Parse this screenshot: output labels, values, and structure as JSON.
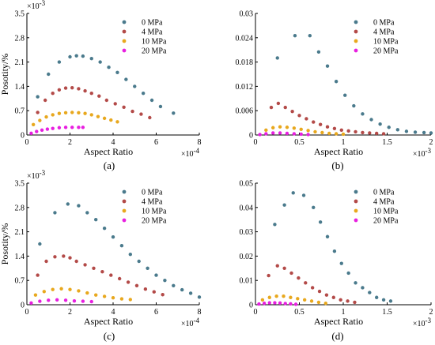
{
  "colors": {
    "0 MPa": "#4a7a8c",
    "4 MPa": "#b34a48",
    "10 MPa": "#e8a81e",
    "20 MPa": "#e81fe0"
  },
  "chart_data": [
    {
      "type": "scatter",
      "panel_label": "(a)",
      "xlabel": "Aspect Ratio",
      "ylabel": "Posotity/%",
      "x_multiplier": "×10",
      "x_exponent": "-4",
      "y_multiplier": "×10",
      "y_exponent": "-3",
      "xlim": [
        0,
        8
      ],
      "ylim": [
        0,
        3.5
      ],
      "xticks": [
        "0",
        "2",
        "4",
        "6",
        "8"
      ],
      "yticks": [
        "0",
        "0.7",
        "1.4",
        "2.1",
        "2.8",
        "3.5"
      ],
      "legend_position": "top-right",
      "series": [
        {
          "name": "0 MPa",
          "x": [
            0.5,
            1.0,
            1.5,
            2.0,
            2.3,
            2.6,
            3.0,
            3.4,
            3.8,
            4.2,
            4.6,
            5.0,
            5.4,
            5.8,
            6.2,
            6.8
          ],
          "y": [
            1.1,
            1.75,
            2.1,
            2.25,
            2.28,
            2.27,
            2.2,
            2.1,
            1.95,
            1.8,
            1.6,
            1.4,
            1.2,
            1.0,
            0.82,
            0.63
          ]
        },
        {
          "name": "4 MPa",
          "x": [
            0.5,
            0.85,
            1.2,
            1.5,
            1.8,
            2.1,
            2.4,
            2.7,
            3.0,
            3.35,
            3.7,
            4.1,
            4.5,
            4.9,
            5.3,
            5.7
          ],
          "y": [
            0.65,
            1.0,
            1.2,
            1.3,
            1.35,
            1.36,
            1.33,
            1.27,
            1.2,
            1.12,
            1.0,
            0.9,
            0.8,
            0.68,
            0.6,
            0.5
          ]
        },
        {
          "name": "10 MPa",
          "x": [
            0.3,
            0.6,
            0.9,
            1.2,
            1.5,
            1.8,
            2.1,
            2.4,
            2.7,
            3.0,
            3.3,
            3.6,
            3.9,
            4.2
          ],
          "y": [
            0.3,
            0.42,
            0.52,
            0.58,
            0.62,
            0.64,
            0.65,
            0.64,
            0.62,
            0.58,
            0.53,
            0.48,
            0.43,
            0.38
          ]
        },
        {
          "name": "20 MPa",
          "x": [
            0.2,
            0.45,
            0.7,
            0.95,
            1.2,
            1.5,
            1.8,
            2.1,
            2.4,
            2.6
          ],
          "y": [
            0.05,
            0.1,
            0.14,
            0.17,
            0.19,
            0.21,
            0.22,
            0.22,
            0.22,
            0.22
          ]
        }
      ]
    },
    {
      "type": "scatter",
      "panel_label": "(b)",
      "xlabel": "Aspect Ratio",
      "ylabel": "",
      "x_multiplier": "×10",
      "x_exponent": "-3",
      "y_multiplier": "",
      "y_exponent": "",
      "xlim": [
        0,
        2
      ],
      "ylim": [
        0,
        0.03
      ],
      "xticks": [
        "0",
        "0.5",
        "1",
        "1.5",
        "2"
      ],
      "yticks": [
        "0",
        "0.006",
        "0.012",
        "0.018",
        "0.024",
        "0.03"
      ],
      "legend_position": "top-right",
      "series": [
        {
          "name": "0 MPa",
          "x": [
            0.25,
            0.45,
            0.62,
            0.72,
            0.82,
            0.92,
            1.02,
            1.12,
            1.22,
            1.32,
            1.42,
            1.52,
            1.62,
            1.72,
            1.82,
            1.92,
            2.0
          ],
          "y": [
            0.019,
            0.0245,
            0.0245,
            0.0205,
            0.017,
            0.0132,
            0.0098,
            0.0072,
            0.0052,
            0.0038,
            0.0027,
            0.0019,
            0.0013,
            0.0009,
            0.0007,
            0.0006,
            0.0005
          ]
        },
        {
          "name": "4 MPa",
          "x": [
            0.18,
            0.26,
            0.34,
            0.42,
            0.5,
            0.58,
            0.66,
            0.74,
            0.82,
            0.9,
            0.98,
            1.06,
            1.14,
            1.22,
            1.3,
            1.38,
            1.46
          ],
          "y": [
            0.0068,
            0.0078,
            0.0068,
            0.0058,
            0.0048,
            0.004,
            0.0032,
            0.0026,
            0.002,
            0.0016,
            0.0012,
            0.001,
            0.0008,
            0.0006,
            0.0005,
            0.0004,
            0.0003
          ]
        },
        {
          "name": "10 MPa",
          "x": [
            0.12,
            0.2,
            0.28,
            0.36,
            0.44,
            0.52,
            0.6,
            0.68,
            0.76,
            0.84,
            0.92,
            1.0
          ],
          "y": [
            0.0012,
            0.0018,
            0.002,
            0.0019,
            0.0017,
            0.0014,
            0.0011,
            0.0008,
            0.0006,
            0.0004,
            0.0003,
            0.0002
          ]
        },
        {
          "name": "20 MPa",
          "x": [
            0.05,
            0.12,
            0.2,
            0.28,
            0.36,
            0.44,
            0.52,
            0.6
          ],
          "y": [
            0.0001,
            0.0003,
            0.0005,
            0.0005,
            0.0004,
            0.0003,
            0.0002,
            0.0001
          ]
        }
      ]
    },
    {
      "type": "scatter",
      "panel_label": "(c)",
      "xlabel": "Aspect Ratio",
      "ylabel": "Posotity/%",
      "x_multiplier": "×10",
      "x_exponent": "-4",
      "y_multiplier": "×10",
      "y_exponent": "-3",
      "xlim": [
        0,
        8
      ],
      "ylim": [
        0,
        3.5
      ],
      "xticks": [
        "0",
        "2",
        "4",
        "6",
        "8"
      ],
      "yticks": [
        "0",
        "0.7",
        "1.4",
        "2.1",
        "2.8",
        "3.5"
      ],
      "legend_position": "top-right",
      "series": [
        {
          "name": "0 MPa",
          "x": [
            0.6,
            1.3,
            1.9,
            2.4,
            2.8,
            3.2,
            3.6,
            4.0,
            4.4,
            4.8,
            5.2,
            5.6,
            6.0,
            6.4,
            6.8,
            7.2,
            7.6,
            8.0
          ],
          "y": [
            1.75,
            2.65,
            2.9,
            2.85,
            2.65,
            2.45,
            2.2,
            1.95,
            1.7,
            1.45,
            1.25,
            1.05,
            0.85,
            0.7,
            0.55,
            0.43,
            0.33,
            0.22
          ]
        },
        {
          "name": "4 MPa",
          "x": [
            0.5,
            0.9,
            1.3,
            1.7,
            2.0,
            2.3,
            2.7,
            3.1,
            3.5,
            3.9,
            4.3,
            4.7,
            5.1,
            5.5,
            5.9,
            6.3
          ],
          "y": [
            0.85,
            1.25,
            1.38,
            1.4,
            1.35,
            1.25,
            1.15,
            1.05,
            0.95,
            0.85,
            0.75,
            0.65,
            0.55,
            0.45,
            0.37,
            0.29
          ]
        },
        {
          "name": "10 MPa",
          "x": [
            0.4,
            0.8,
            1.2,
            1.6,
            2.0,
            2.4,
            2.8,
            3.2,
            3.6,
            4.0,
            4.4,
            4.8
          ],
          "y": [
            0.28,
            0.38,
            0.44,
            0.46,
            0.44,
            0.4,
            0.34,
            0.28,
            0.24,
            0.2,
            0.17,
            0.15
          ]
        },
        {
          "name": "20 MPa",
          "x": [
            0.2,
            0.6,
            1.0,
            1.4,
            1.8,
            2.2,
            2.6,
            3.0
          ],
          "y": [
            0.05,
            0.1,
            0.13,
            0.14,
            0.13,
            0.11,
            0.1,
            0.09
          ]
        }
      ]
    },
    {
      "type": "scatter",
      "panel_label": "(d)",
      "xlabel": "Aspect Ratio",
      "ylabel": "",
      "x_multiplier": "×10",
      "x_exponent": "-3",
      "y_multiplier": "",
      "y_exponent": "",
      "xlim": [
        0,
        2
      ],
      "ylim": [
        0,
        0.05
      ],
      "xticks": [
        "0",
        "0.5",
        "1",
        "1.5",
        "2"
      ],
      "yticks": [
        "0",
        "0.01",
        "0.02",
        "0.03",
        "0.04",
        "0.05"
      ],
      "legend_position": "top-right",
      "series": [
        {
          "name": "0 MPa",
          "x": [
            0.22,
            0.33,
            0.43,
            0.55,
            0.66,
            0.74,
            0.82,
            0.9,
            0.98,
            1.06,
            1.14,
            1.22,
            1.3,
            1.38,
            1.46,
            1.54
          ],
          "y": [
            0.033,
            0.041,
            0.046,
            0.045,
            0.04,
            0.034,
            0.028,
            0.022,
            0.017,
            0.013,
            0.009,
            0.007,
            0.005,
            0.003,
            0.002,
            0.0015
          ]
        },
        {
          "name": "4 MPa",
          "x": [
            0.15,
            0.25,
            0.33,
            0.41,
            0.49,
            0.57,
            0.65,
            0.73,
            0.81,
            0.89,
            0.97,
            1.05,
            1.13
          ],
          "y": [
            0.012,
            0.016,
            0.015,
            0.013,
            0.011,
            0.009,
            0.007,
            0.0055,
            0.004,
            0.003,
            0.002,
            0.0015,
            0.001
          ]
        },
        {
          "name": "10 MPa",
          "x": [
            0.08,
            0.16,
            0.24,
            0.32,
            0.4,
            0.48,
            0.56,
            0.64,
            0.72,
            0.8
          ],
          "y": [
            0.002,
            0.003,
            0.0035,
            0.0035,
            0.003,
            0.0025,
            0.002,
            0.0015,
            0.001,
            0.0006
          ]
        },
        {
          "name": "20 MPa",
          "x": [
            0.04,
            0.1,
            0.16,
            0.22,
            0.28,
            0.34,
            0.4,
            0.46
          ],
          "y": [
            0.0003,
            0.0006,
            0.0008,
            0.0008,
            0.0007,
            0.0005,
            0.0004,
            0.0002
          ]
        }
      ]
    }
  ]
}
